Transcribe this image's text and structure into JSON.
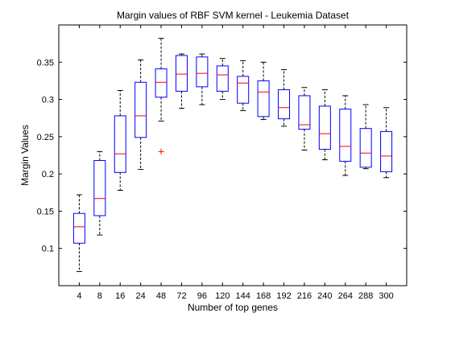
{
  "chart_data": {
    "type": "boxplot",
    "title": "Margin values of RBF SVM kernel - Leukemia Dataset",
    "xlabel": "Number of top genes",
    "ylabel": "Margin Values",
    "ylim": [
      0.05,
      0.4
    ],
    "yticks": [
      0.1,
      0.15,
      0.2,
      0.25,
      0.3,
      0.35
    ],
    "ytick_labels": [
      "0.1",
      "0.15",
      "0.2",
      "0.25",
      "0.3",
      "0.35"
    ],
    "categories": [
      "4",
      "8",
      "16",
      "24",
      "48",
      "72",
      "96",
      "120",
      "144",
      "168",
      "192",
      "216",
      "240",
      "264",
      "288",
      "300"
    ],
    "grid": false,
    "colors": {
      "box": "#0000ff",
      "median": "#ff0000",
      "whisker": "#000000",
      "outlier": "#ff0000"
    },
    "boxes": [
      {
        "label": "4",
        "whisker_low": 0.069,
        "q1": 0.107,
        "median": 0.129,
        "q3": 0.147,
        "whisker_high": 0.172,
        "outliers": []
      },
      {
        "label": "8",
        "whisker_low": 0.118,
        "q1": 0.144,
        "median": 0.167,
        "q3": 0.218,
        "whisker_high": 0.23,
        "outliers": []
      },
      {
        "label": "16",
        "whisker_low": 0.178,
        "q1": 0.202,
        "median": 0.227,
        "q3": 0.278,
        "whisker_high": 0.312,
        "outliers": []
      },
      {
        "label": "24",
        "whisker_low": 0.206,
        "q1": 0.249,
        "median": 0.278,
        "q3": 0.323,
        "whisker_high": 0.353,
        "outliers": []
      },
      {
        "label": "48",
        "whisker_low": 0.271,
        "q1": 0.303,
        "median": 0.323,
        "q3": 0.341,
        "whisker_high": 0.382,
        "outliers": [
          0.23
        ]
      },
      {
        "label": "72",
        "whisker_low": 0.288,
        "q1": 0.311,
        "median": 0.334,
        "q3": 0.359,
        "whisker_high": 0.361,
        "outliers": []
      },
      {
        "label": "96",
        "whisker_low": 0.293,
        "q1": 0.317,
        "median": 0.335,
        "q3": 0.357,
        "whisker_high": 0.361,
        "outliers": []
      },
      {
        "label": "120",
        "whisker_low": 0.3,
        "q1": 0.311,
        "median": 0.333,
        "q3": 0.345,
        "whisker_high": 0.355,
        "outliers": []
      },
      {
        "label": "144",
        "whisker_low": 0.285,
        "q1": 0.295,
        "median": 0.322,
        "q3": 0.331,
        "whisker_high": 0.352,
        "outliers": []
      },
      {
        "label": "168",
        "whisker_low": 0.273,
        "q1": 0.277,
        "median": 0.31,
        "q3": 0.325,
        "whisker_high": 0.35,
        "outliers": []
      },
      {
        "label": "192",
        "whisker_low": 0.264,
        "q1": 0.274,
        "median": 0.289,
        "q3": 0.313,
        "whisker_high": 0.34,
        "outliers": []
      },
      {
        "label": "216",
        "whisker_low": 0.232,
        "q1": 0.26,
        "median": 0.266,
        "q3": 0.305,
        "whisker_high": 0.316,
        "outliers": []
      },
      {
        "label": "240",
        "whisker_low": 0.219,
        "q1": 0.233,
        "median": 0.254,
        "q3": 0.291,
        "whisker_high": 0.313,
        "outliers": []
      },
      {
        "label": "264",
        "whisker_low": 0.198,
        "q1": 0.217,
        "median": 0.237,
        "q3": 0.287,
        "whisker_high": 0.305,
        "outliers": []
      },
      {
        "label": "288",
        "whisker_low": 0.207,
        "q1": 0.209,
        "median": 0.228,
        "q3": 0.261,
        "whisker_high": 0.293,
        "outliers": []
      },
      {
        "label": "300",
        "whisker_low": 0.195,
        "q1": 0.203,
        "median": 0.224,
        "q3": 0.257,
        "whisker_high": 0.289,
        "outliers": []
      }
    ]
  }
}
